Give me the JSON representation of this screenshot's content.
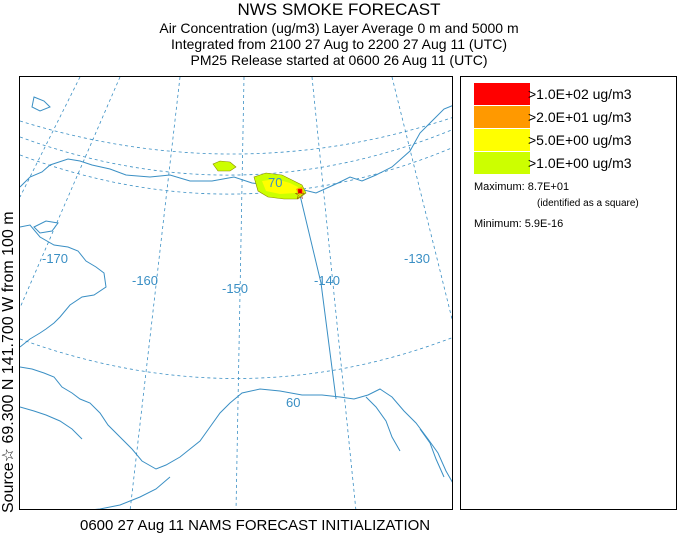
{
  "header": {
    "title": "NWS SMOKE FORECAST",
    "line1": "Air Concentration (ug/m3) Layer Average     0 m and  5000 m",
    "line2": "Integrated from 2100 27 Aug to 2200 27 Aug 11 (UTC)",
    "line3": "PM25 Release started at 0600 26 Aug 11 (UTC)"
  },
  "source_label": "Source☆ 69.300  N 141.700  W      from    100 m",
  "footer": "0600 27 Aug 11 NAMS FORECAST INITIALIZATION",
  "legend": {
    "items": [
      {
        "label": ">1.0E+02 ug/m3",
        "color": "#ff0000"
      },
      {
        "label": ">2.0E+01 ug/m3",
        "color": "#ff9900"
      },
      {
        "label": ">5.0E+00 ug/m3",
        "color": "#ffff00"
      },
      {
        "label": ">1.0E+00 ug/m3",
        "color": "#ccff00"
      }
    ],
    "maximum": "Maximum: 8.7E+01",
    "maximum_note": "(identified as a square)",
    "minimum": "Minimum: 5.9E-16"
  },
  "map": {
    "lon_labels": [
      "-170",
      "-160",
      "-150",
      "-140",
      "-130"
    ],
    "lat_labels": [
      "70",
      "60"
    ],
    "line_color": "#3a8fc4",
    "source_marker": "star-icon"
  }
}
